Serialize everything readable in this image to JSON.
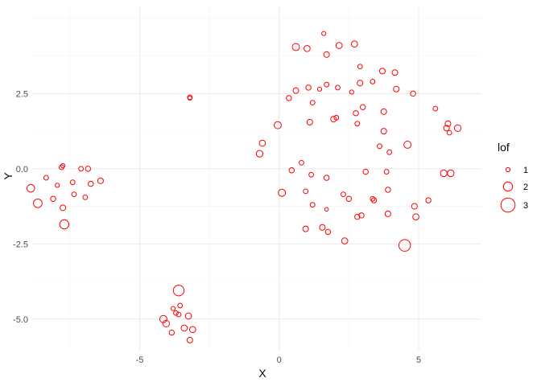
{
  "chart_data": {
    "type": "scatter",
    "title": "",
    "xlabel": "X",
    "ylabel": "Y",
    "xlim": [
      -8.85,
      7.25
    ],
    "ylim": [
      -6.05,
      5.4
    ],
    "x_ticks": [
      -5,
      0,
      5
    ],
    "x_tick_labels": [
      "-5",
      "0",
      "5"
    ],
    "y_ticks": [
      -5.0,
      -2.5,
      0.0,
      2.5
    ],
    "y_tick_labels": [
      "-5.0",
      "-2.5",
      "0.0",
      "2.5"
    ],
    "grid": true,
    "color": "#ff0000",
    "legend": {
      "title": "lof",
      "position": "right",
      "entries": [
        {
          "label": "1",
          "value": 1
        },
        {
          "label": "2",
          "value": 2
        },
        {
          "label": "3",
          "value": 3
        }
      ]
    },
    "points": [
      {
        "x": -8.9,
        "y": -0.65,
        "lof": 1.7
      },
      {
        "x": -8.65,
        "y": -1.15,
        "lof": 1.9
      },
      {
        "x": -8.35,
        "y": -0.3,
        "lof": 1.1
      },
      {
        "x": -8.1,
        "y": -1.0,
        "lof": 1.2
      },
      {
        "x": -7.95,
        "y": -0.55,
        "lof": 1.0
      },
      {
        "x": -7.8,
        "y": 0.05,
        "lof": 1.1
      },
      {
        "x": -7.75,
        "y": 0.1,
        "lof": 1.0
      },
      {
        "x": -7.75,
        "y": -1.3,
        "lof": 1.3
      },
      {
        "x": -7.7,
        "y": -1.85,
        "lof": 2.0
      },
      {
        "x": -7.4,
        "y": -0.45,
        "lof": 1.1
      },
      {
        "x": -7.35,
        "y": -0.85,
        "lof": 1.1
      },
      {
        "x": -7.1,
        "y": 0.0,
        "lof": 1.1
      },
      {
        "x": -6.95,
        "y": -0.95,
        "lof": 1.1
      },
      {
        "x": -6.85,
        "y": 0.0,
        "lof": 1.2
      },
      {
        "x": -6.75,
        "y": -0.5,
        "lof": 1.2
      },
      {
        "x": -6.4,
        "y": -0.4,
        "lof": 1.3
      },
      {
        "x": -3.2,
        "y": 2.38,
        "lof": 1.1
      },
      {
        "x": -3.2,
        "y": 2.35,
        "lof": 1.0
      },
      {
        "x": -4.15,
        "y": -5.0,
        "lof": 1.6
      },
      {
        "x": -4.05,
        "y": -5.15,
        "lof": 1.5
      },
      {
        "x": -3.85,
        "y": -5.45,
        "lof": 1.2
      },
      {
        "x": -3.8,
        "y": -4.65,
        "lof": 1.0
      },
      {
        "x": -3.7,
        "y": -4.8,
        "lof": 1.1
      },
      {
        "x": -3.6,
        "y": -4.85,
        "lof": 1.1
      },
      {
        "x": -3.55,
        "y": -4.55,
        "lof": 1.1
      },
      {
        "x": -3.6,
        "y": -4.05,
        "lof": 2.3
      },
      {
        "x": -3.4,
        "y": -5.3,
        "lof": 1.4
      },
      {
        "x": -3.25,
        "y": -4.9,
        "lof": 1.4
      },
      {
        "x": -3.1,
        "y": -5.35,
        "lof": 1.4
      },
      {
        "x": -3.2,
        "y": -5.7,
        "lof": 1.3
      },
      {
        "x": -0.7,
        "y": 0.5,
        "lof": 1.5
      },
      {
        "x": -0.6,
        "y": 0.85,
        "lof": 1.4
      },
      {
        "x": -0.05,
        "y": 1.45,
        "lof": 1.6
      },
      {
        "x": 0.1,
        "y": -0.8,
        "lof": 1.6
      },
      {
        "x": 0.35,
        "y": 2.35,
        "lof": 1.2
      },
      {
        "x": 0.45,
        "y": -0.05,
        "lof": 1.2
      },
      {
        "x": 0.6,
        "y": 2.6,
        "lof": 1.3
      },
      {
        "x": 0.6,
        "y": 4.05,
        "lof": 1.6
      },
      {
        "x": 0.8,
        "y": 0.2,
        "lof": 1.1
      },
      {
        "x": 0.95,
        "y": -0.75,
        "lof": 1.1
      },
      {
        "x": 0.95,
        "y": -2.0,
        "lof": 1.3
      },
      {
        "x": 1.0,
        "y": 4.0,
        "lof": 1.4
      },
      {
        "x": 1.05,
        "y": 2.7,
        "lof": 1.2
      },
      {
        "x": 1.1,
        "y": 1.55,
        "lof": 1.3
      },
      {
        "x": 1.15,
        "y": -0.2,
        "lof": 1.1
      },
      {
        "x": 1.2,
        "y": 2.2,
        "lof": 1.1
      },
      {
        "x": 1.2,
        "y": -1.2,
        "lof": 1.1
      },
      {
        "x": 1.45,
        "y": 2.65,
        "lof": 1.0
      },
      {
        "x": 1.55,
        "y": -1.95,
        "lof": 1.3
      },
      {
        "x": 1.6,
        "y": 4.5,
        "lof": 1.0
      },
      {
        "x": 1.7,
        "y": 2.8,
        "lof": 1.1
      },
      {
        "x": 1.7,
        "y": 3.8,
        "lof": 1.3
      },
      {
        "x": 1.7,
        "y": -0.3,
        "lof": 1.2
      },
      {
        "x": 1.7,
        "y": -1.35,
        "lof": 0.9
      },
      {
        "x": 1.75,
        "y": -2.1,
        "lof": 1.2
      },
      {
        "x": 1.95,
        "y": 1.65,
        "lof": 1.3
      },
      {
        "x": 2.05,
        "y": 1.7,
        "lof": 1.1
      },
      {
        "x": 2.1,
        "y": 2.7,
        "lof": 1.1
      },
      {
        "x": 2.15,
        "y": 4.1,
        "lof": 1.4
      },
      {
        "x": 2.3,
        "y": -0.85,
        "lof": 1.1
      },
      {
        "x": 2.35,
        "y": -2.4,
        "lof": 1.4
      },
      {
        "x": 2.5,
        "y": -1.0,
        "lof": 1.2
      },
      {
        "x": 2.6,
        "y": 2.55,
        "lof": 1.0
      },
      {
        "x": 2.7,
        "y": 4.15,
        "lof": 1.4
      },
      {
        "x": 2.75,
        "y": 1.85,
        "lof": 1.2
      },
      {
        "x": 2.8,
        "y": -1.6,
        "lof": 1.2
      },
      {
        "x": 2.8,
        "y": 1.5,
        "lof": 1.1
      },
      {
        "x": 2.9,
        "y": 3.4,
        "lof": 1.1
      },
      {
        "x": 2.9,
        "y": 2.85,
        "lof": 1.3
      },
      {
        "x": 2.95,
        "y": -1.55,
        "lof": 1.2
      },
      {
        "x": 3.0,
        "y": 2.05,
        "lof": 1.2
      },
      {
        "x": 3.1,
        "y": -0.1,
        "lof": 1.2
      },
      {
        "x": 3.35,
        "y": 2.9,
        "lof": 1.1
      },
      {
        "x": 3.35,
        "y": -1.0,
        "lof": 1.1
      },
      {
        "x": 3.4,
        "y": -1.05,
        "lof": 1.2
      },
      {
        "x": 3.6,
        "y": 0.75,
        "lof": 1.1
      },
      {
        "x": 3.7,
        "y": 3.25,
        "lof": 1.3
      },
      {
        "x": 3.75,
        "y": 1.9,
        "lof": 1.3
      },
      {
        "x": 3.75,
        "y": 1.25,
        "lof": 1.3
      },
      {
        "x": 3.85,
        "y": -0.1,
        "lof": 1.1
      },
      {
        "x": 3.9,
        "y": -0.7,
        "lof": 1.2
      },
      {
        "x": 3.9,
        "y": -1.5,
        "lof": 1.3
      },
      {
        "x": 3.95,
        "y": 0.55,
        "lof": 1.1
      },
      {
        "x": 4.15,
        "y": 3.2,
        "lof": 1.3
      },
      {
        "x": 4.2,
        "y": 2.65,
        "lof": 1.3
      },
      {
        "x": 4.5,
        "y": -2.55,
        "lof": 2.5
      },
      {
        "x": 4.6,
        "y": 0.8,
        "lof": 1.6
      },
      {
        "x": 4.8,
        "y": 2.5,
        "lof": 1.2
      },
      {
        "x": 4.85,
        "y": -1.25,
        "lof": 1.3
      },
      {
        "x": 4.9,
        "y": -1.6,
        "lof": 1.4
      },
      {
        "x": 5.35,
        "y": -1.05,
        "lof": 1.2
      },
      {
        "x": 5.6,
        "y": 2.0,
        "lof": 1.1
      },
      {
        "x": 5.9,
        "y": -0.15,
        "lof": 1.5
      },
      {
        "x": 6.0,
        "y": 1.35,
        "lof": 1.3
      },
      {
        "x": 6.05,
        "y": 1.5,
        "lof": 1.3
      },
      {
        "x": 6.1,
        "y": 1.2,
        "lof": 1.1
      },
      {
        "x": 6.15,
        "y": -0.15,
        "lof": 1.5
      },
      {
        "x": 6.4,
        "y": 1.35,
        "lof": 1.5
      }
    ]
  }
}
